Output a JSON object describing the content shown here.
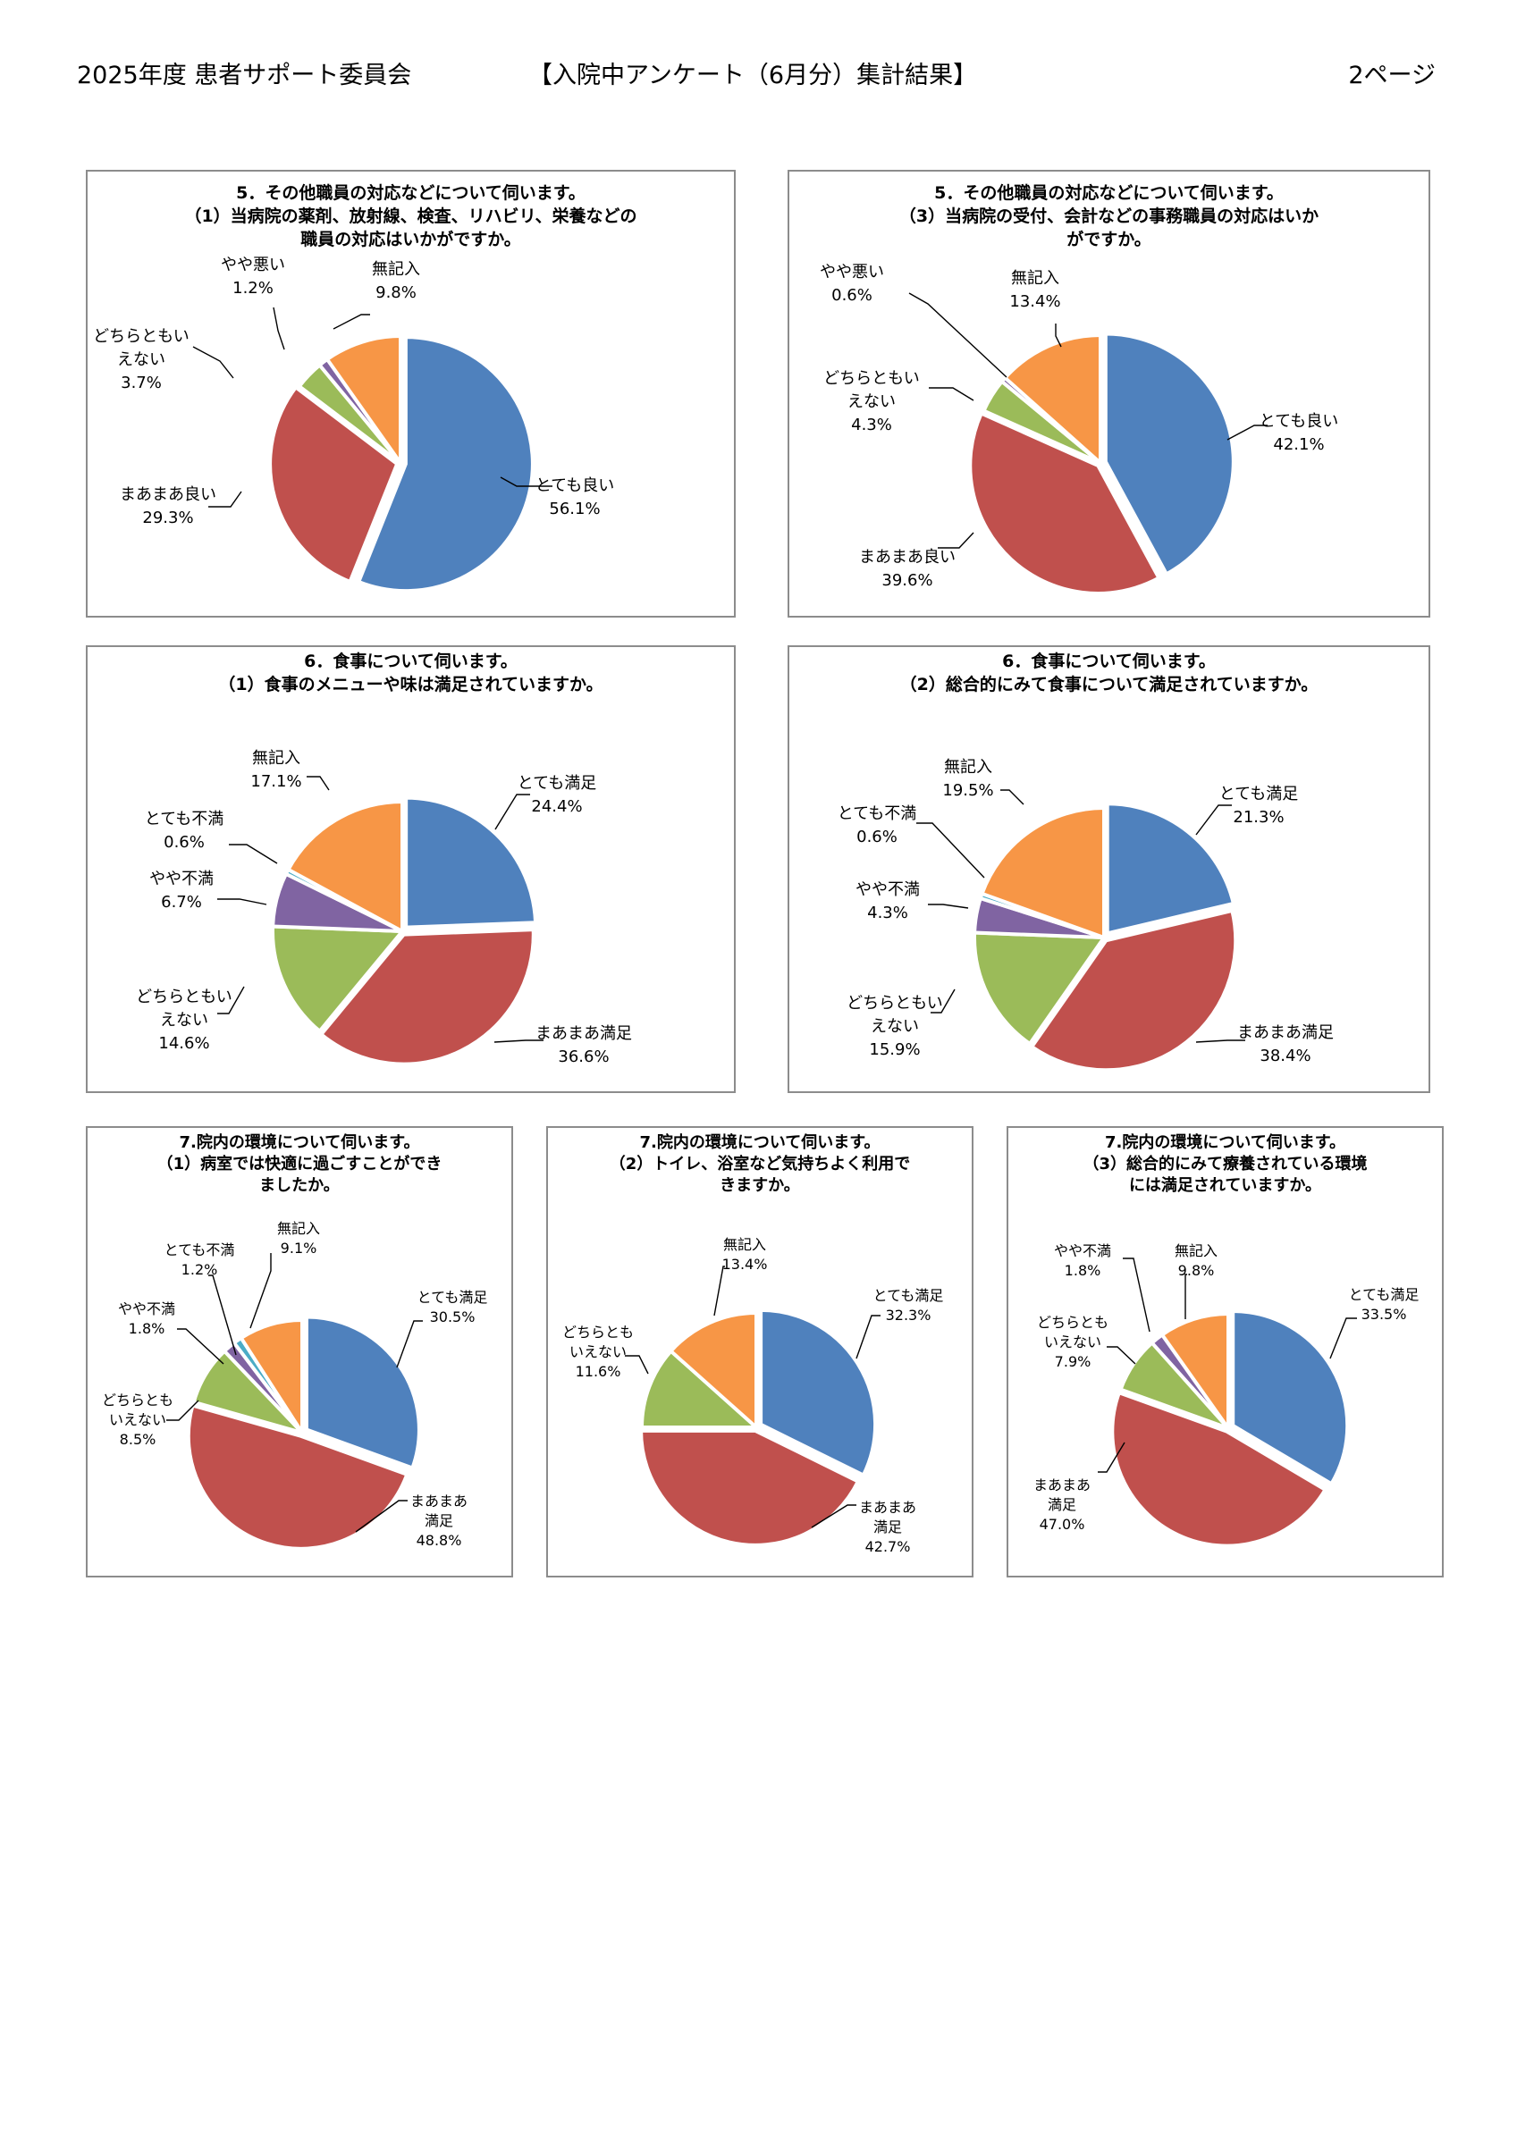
{
  "header": {
    "left": "2025年度 患者サポート委員会",
    "center": "【入院中アンケート（6月分）集計結果】",
    "right": "2ページ"
  },
  "colors": {
    "blue": "#4F81BD",
    "red": "#C0504D",
    "green": "#9BBB59",
    "purple": "#8064A2",
    "cyan": "#4BACC6",
    "orange": "#F79646"
  },
  "chart_data": [
    {
      "type": "pie",
      "title": [
        "5．その他職員の対応などについて伺います。",
        "（1）当病院の薬剤、放射線、検査、リハビリ、栄養などの",
        "職員の対応はいかがですか。"
      ],
      "slices": [
        {
          "label": [
            "とても良い"
          ],
          "value": 56.1,
          "display": "56.1%",
          "color": "blue"
        },
        {
          "label": [
            "まあまあ良い"
          ],
          "value": 29.3,
          "display": "29.3%",
          "color": "red"
        },
        {
          "label": [
            "どちらともい",
            "えない"
          ],
          "value": 3.7,
          "display": "3.7%",
          "color": "green"
        },
        {
          "label": [
            "やや悪い"
          ],
          "value": 1.2,
          "display": "1.2%",
          "color": "purple"
        },
        {
          "label": [
            "無記入"
          ],
          "value": 9.8,
          "display": "9.8%",
          "color": "orange"
        }
      ]
    },
    {
      "type": "pie",
      "title": [
        "5．その他職員の対応などについて伺います。",
        "（3）当病院の受付、会計などの事務職員の対応はいか",
        "がですか。"
      ],
      "slices": [
        {
          "label": [
            "とても良い"
          ],
          "value": 42.1,
          "display": "42.1%",
          "color": "blue"
        },
        {
          "label": [
            "まあまあ良い"
          ],
          "value": 39.6,
          "display": "39.6%",
          "color": "red"
        },
        {
          "label": [
            "どちらともい",
            "えない"
          ],
          "value": 4.3,
          "display": "4.3%",
          "color": "green"
        },
        {
          "label": [
            "やや悪い"
          ],
          "value": 0.6,
          "display": "0.6%",
          "color": "purple"
        },
        {
          "label": [
            "無記入"
          ],
          "value": 13.4,
          "display": "13.4%",
          "color": "orange"
        }
      ]
    },
    {
      "type": "pie",
      "title": [
        "6．食事について伺います。",
        "（1）食事のメニューや味は満足されていますか。"
      ],
      "slices": [
        {
          "label": [
            "とても満足"
          ],
          "value": 24.4,
          "display": "24.4%",
          "color": "blue"
        },
        {
          "label": [
            "まあまあ満足"
          ],
          "value": 36.6,
          "display": "36.6%",
          "color": "red"
        },
        {
          "label": [
            "どちらともい",
            "えない"
          ],
          "value": 14.6,
          "display": "14.6%",
          "color": "green"
        },
        {
          "label": [
            "やや不満"
          ],
          "value": 6.7,
          "display": "6.7%",
          "color": "purple"
        },
        {
          "label": [
            "とても不満"
          ],
          "value": 0.6,
          "display": "0.6%",
          "color": "cyan"
        },
        {
          "label": [
            "無記入"
          ],
          "value": 17.1,
          "display": "17.1%",
          "color": "orange"
        }
      ]
    },
    {
      "type": "pie",
      "title": [
        "6．食事について伺います。",
        "（2）総合的にみて食事について満足されていますか。"
      ],
      "slices": [
        {
          "label": [
            "とても満足"
          ],
          "value": 21.3,
          "display": "21.3%",
          "color": "blue"
        },
        {
          "label": [
            "まあまあ満足"
          ],
          "value": 38.4,
          "display": "38.4%",
          "color": "red"
        },
        {
          "label": [
            "どちらともい",
            "えない"
          ],
          "value": 15.9,
          "display": "15.9%",
          "color": "green"
        },
        {
          "label": [
            "やや不満"
          ],
          "value": 4.3,
          "display": "4.3%",
          "color": "purple"
        },
        {
          "label": [
            "とても不満"
          ],
          "value": 0.6,
          "display": "0.6%",
          "color": "cyan"
        },
        {
          "label": [
            "無記入"
          ],
          "value": 19.5,
          "display": "19.5%",
          "color": "orange"
        }
      ]
    },
    {
      "type": "pie",
      "title": [
        "7.院内の環境について伺います。",
        "（1）病室では快適に過ごすことができ",
        "ましたか。"
      ],
      "slices": [
        {
          "label": [
            "とても満足"
          ],
          "value": 30.5,
          "display": "30.5%",
          "color": "blue"
        },
        {
          "label": [
            "まあまあ",
            "満足"
          ],
          "value": 48.8,
          "display": "48.8%",
          "color": "red"
        },
        {
          "label": [
            "どちらとも",
            "いえない"
          ],
          "value": 8.5,
          "display": "8.5%",
          "color": "green"
        },
        {
          "label": [
            "やや不満"
          ],
          "value": 1.8,
          "display": "1.8%",
          "color": "purple"
        },
        {
          "label": [
            "とても不満"
          ],
          "value": 1.2,
          "display": "1.2%",
          "color": "cyan"
        },
        {
          "label": [
            "無記入"
          ],
          "value": 9.1,
          "display": "9.1%",
          "color": "orange"
        }
      ]
    },
    {
      "type": "pie",
      "title": [
        "7.院内の環境について伺います。",
        "（2）トイレ、浴室など気持ちよく利用で",
        "きますか。"
      ],
      "slices": [
        {
          "label": [
            "とても満足"
          ],
          "value": 32.3,
          "display": "32.3%",
          "color": "blue"
        },
        {
          "label": [
            "まあまあ",
            "満足"
          ],
          "value": 42.7,
          "display": "42.7%",
          "color": "red"
        },
        {
          "label": [
            "どちらとも",
            "いえない"
          ],
          "value": 11.6,
          "display": "11.6%",
          "color": "green"
        },
        {
          "label": [
            "無記入"
          ],
          "value": 13.4,
          "display": "13.4%",
          "color": "orange"
        }
      ]
    },
    {
      "type": "pie",
      "title": [
        "7.院内の環境について伺います。",
        "（3）総合的にみて療養されている環境",
        "には満足されていますか。"
      ],
      "slices": [
        {
          "label": [
            "とても満足"
          ],
          "value": 33.5,
          "display": "33.5%",
          "color": "blue"
        },
        {
          "label": [
            "まあまあ",
            "満足"
          ],
          "value": 47.0,
          "display": "47.0%",
          "color": "red"
        },
        {
          "label": [
            "どちらとも",
            "いえない"
          ],
          "value": 7.9,
          "display": "7.9%",
          "color": "green"
        },
        {
          "label": [
            "やや不満"
          ],
          "value": 1.8,
          "display": "1.8%",
          "color": "purple"
        },
        {
          "label": [
            "無記入"
          ],
          "value": 9.8,
          "display": "9.8%",
          "color": "orange"
        }
      ]
    }
  ]
}
